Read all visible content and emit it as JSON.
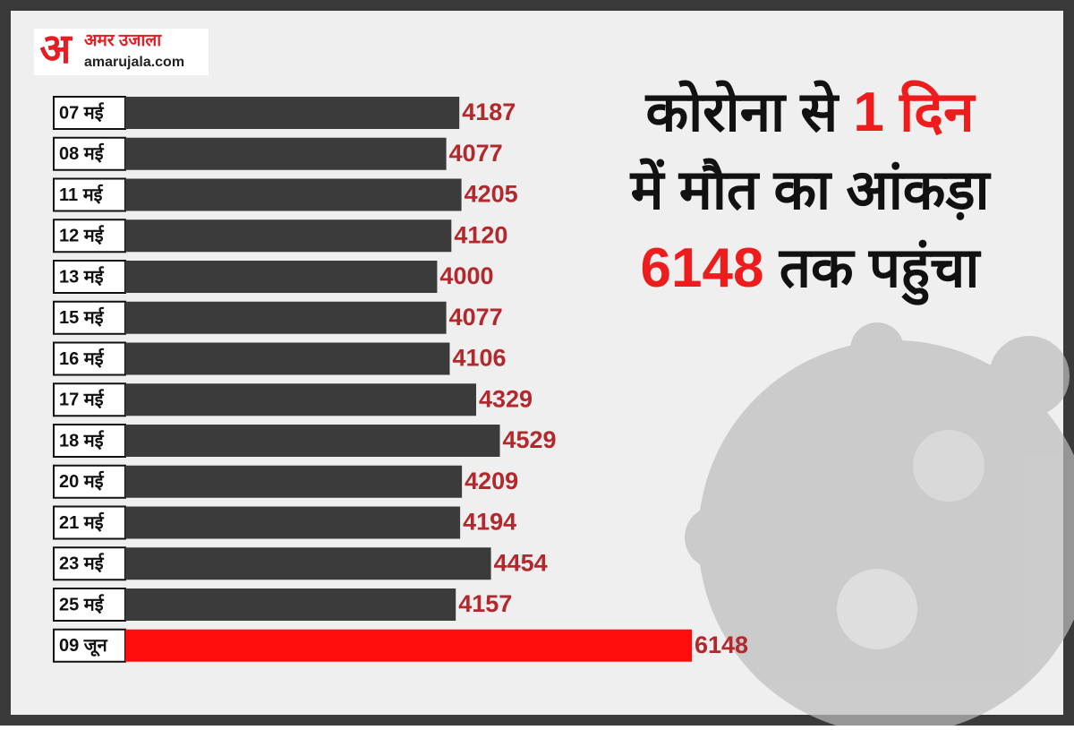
{
  "logo": {
    "mark": "अ",
    "name": "अमर उजाला",
    "site": "amarujala.com"
  },
  "chart_data": {
    "type": "hbar",
    "title_lines": [
      [
        {
          "text": "कोरोना से ",
          "color": "#111111"
        },
        {
          "text": "1 दिन",
          "color": "#ee1c1c"
        }
      ],
      [
        {
          "text": "में मौत का आंकड़ा",
          "color": "#111111"
        }
      ],
      [
        {
          "text": "6148",
          "color": "#ee1c1c"
        },
        {
          "text": " तक पहुंचा",
          "color": "#111111"
        }
      ]
    ],
    "categories": [
      "07 मई",
      "08 मई",
      "11  मई",
      "12 मई",
      "13 मई",
      "15 मई",
      "16 मई",
      "17 मई",
      "18 मई",
      "20 मई",
      "21 मई",
      "23 मई",
      "25 मई",
      "09 जून"
    ],
    "values": [
      4187,
      4077,
      4205,
      4120,
      4000,
      4077,
      4106,
      4329,
      4529,
      4209,
      4194,
      4454,
      4157,
      6148
    ],
    "colors": [
      "#3b3b3b",
      "#3b3b3b",
      "#3b3b3b",
      "#3b3b3b",
      "#3b3b3b",
      "#3b3b3b",
      "#3b3b3b",
      "#3b3b3b",
      "#3b3b3b",
      "#3b3b3b",
      "#3b3b3b",
      "#3b3b3b",
      "#3b3b3b",
      "#ff0d0d"
    ],
    "value_label_color": "#b3282c",
    "xlim": [
      1370,
      6148
    ]
  }
}
